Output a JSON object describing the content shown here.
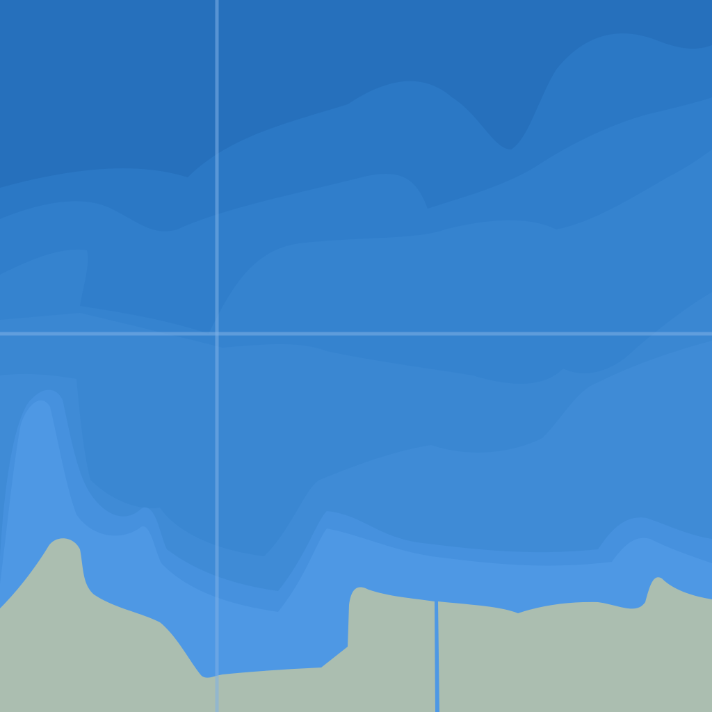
{
  "map": {
    "kind": "bathymetric-map-tile",
    "labels_visible": false,
    "graticule": {
      "visible": true,
      "vertical_lines": 1,
      "horizontal_lines": 1,
      "line_color": "#7fb0e6"
    },
    "colors": {
      "water_depth_bands": [
        "#2670bc",
        "#2b78c5",
        "#307ecb",
        "#3583cf",
        "#3a87d2",
        "#3f8bd6",
        "#4691de",
        "#4e98e4"
      ],
      "land": "#abbeb0",
      "river_channel": "#5b9fe0"
    },
    "features": [
      "deep-water",
      "shelf-contours",
      "shallow-coastal-water",
      "land",
      "river-inlet",
      "graticule"
    ]
  }
}
